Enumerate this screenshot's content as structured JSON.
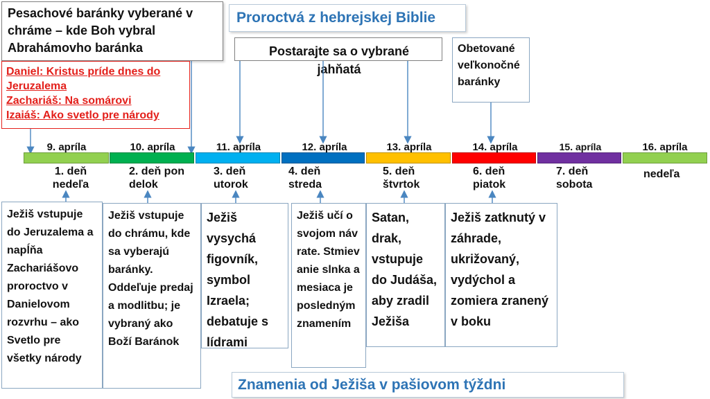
{
  "top_left_note": "Pesachové baránky vyberané v chráme – kde Boh vybral Abrahámovho baránka",
  "prophecies": {
    "daniel": "Daniel: Kristus príde dnes do Jeruzalema",
    "zachariah": "Zachariáš: Na somárovi",
    "isaiah_prefix": "Izaiáš: Ako svetlo pre ",
    "isaiah_word": "národy"
  },
  "title_top": "Proroctvá z hebrejskej Biblie",
  "note_lambs": "Postarajte sa o vybrané jahňatá",
  "note_sacrificed": "Obetované veľkonočné baránky",
  "title_bottom": "Znamenia od Ježiša v pašiovom týždni",
  "timeline": [
    {
      "date": "9. apríla",
      "day": "1. deň nedeľa",
      "color": "#92d050"
    },
    {
      "date": "10. apríla",
      "day": "2. deň pondelok",
      "color": "#00b050"
    },
    {
      "date": "11. apríla",
      "day": "3. deň utorok",
      "color": "#00b0f0"
    },
    {
      "date": "12. apríla",
      "day": "4. deň streda",
      "color": "#0070c0"
    },
    {
      "date": "13. apríla",
      "day": "5. deň štvrtok",
      "color": "#ffc000"
    },
    {
      "date": "14. apríla",
      "day": "6. deň piatok",
      "color": "#ff0000"
    },
    {
      "date": "15. apríla",
      "day": "7. deň sobota",
      "color": "#7030a0"
    },
    {
      "date": "16. apríla",
      "day": "nedeľa",
      "color": "#92d050"
    }
  ],
  "events": [
    "Ježiš vstupuje do Jeruzalema a napĺňa Zachariášovo proroctvo v Danielovom rozvrhu – ako Svetlo pre všetky národy",
    "Ježiš vstupuje do chrámu, kde sa vyberajú baránky. Oddeľuje predaj a modlitbu; je vybraný ako Boží Baránok",
    "Ježiš vysychá figovník, symbol Izraela; debatuje s lídrami",
    "Ježiš učí o svojom návrate. Stmievanie slnka a mesiaca je posledným znamením",
    "Satan, drak, vstupuje do Judáša, aby zradil Ježiša",
    "Ježiš zatknutý v záhrade, ukrižovaný, vydýchol a zomiera zranený v boku"
  ]
}
